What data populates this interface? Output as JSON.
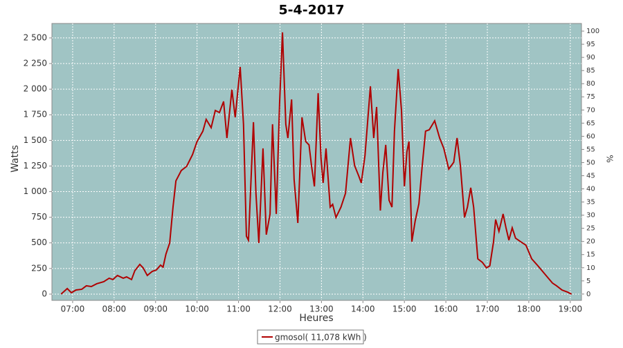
{
  "chart_data": {
    "type": "line",
    "title": "5-4-2017",
    "x_label": "Heures",
    "y_label": "Watts",
    "y2_label": "%",
    "x": [
      6.72,
      6.87,
      6.97,
      7.08,
      7.22,
      7.33,
      7.45,
      7.58,
      7.75,
      7.88,
      7.97,
      8.08,
      8.22,
      8.3,
      8.42,
      8.5,
      8.62,
      8.7,
      8.8,
      8.92,
      9.02,
      9.12,
      9.18,
      9.25,
      9.34,
      9.42,
      9.49,
      9.62,
      9.75,
      9.89,
      10.0,
      10.14,
      10.22,
      10.34,
      10.44,
      10.54,
      10.64,
      10.72,
      10.84,
      10.92,
      11.04,
      11.12,
      11.19,
      11.24,
      11.36,
      11.42,
      11.49,
      11.59,
      11.67,
      11.76,
      11.82,
      11.91,
      11.99,
      12.06,
      12.14,
      12.19,
      12.28,
      12.34,
      12.43,
      12.53,
      12.62,
      12.7,
      12.76,
      12.83,
      12.92,
      12.99,
      13.04,
      13.11,
      13.21,
      13.27,
      13.35,
      13.47,
      13.58,
      13.7,
      13.8,
      13.9,
      13.96,
      14.05,
      14.18,
      14.26,
      14.33,
      14.42,
      14.48,
      14.55,
      14.63,
      14.7,
      14.76,
      14.85,
      14.93,
      15.0,
      15.06,
      15.11,
      15.18,
      15.26,
      15.35,
      15.43,
      15.51,
      15.6,
      15.73,
      15.85,
      15.95,
      16.07,
      16.19,
      16.27,
      16.35,
      16.45,
      16.52,
      16.6,
      16.67,
      16.77,
      16.88,
      16.98,
      17.06,
      17.15,
      17.2,
      17.28,
      17.38,
      17.45,
      17.52,
      17.6,
      17.68,
      17.8,
      17.93,
      18.07,
      18.22,
      18.43,
      18.57,
      18.67,
      18.8,
      18.93,
      19.03
    ],
    "series": [
      {
        "name": "gmosol( 11,078 kWh )",
        "color": "#b00000",
        "values": [
          0,
          54,
          13,
          40,
          47,
          81,
          74,
          101,
          121,
          155,
          142,
          182,
          155,
          168,
          142,
          229,
          290,
          256,
          182,
          222,
          236,
          283,
          263,
          391,
          499,
          849,
          1105,
          1206,
          1247,
          1361,
          1489,
          1590,
          1705,
          1624,
          1792,
          1772,
          1880,
          1523,
          1995,
          1725,
          2217,
          1658,
          566,
          526,
          1678,
          984,
          499,
          1422,
          580,
          782,
          1658,
          782,
          1860,
          2554,
          1658,
          1523,
          1900,
          1119,
          694,
          1725,
          1489,
          1456,
          1253,
          1051,
          1961,
          1321,
          1085,
          1422,
          849,
          876,
          748,
          849,
          984,
          1523,
          1253,
          1152,
          1085,
          1354,
          2028,
          1523,
          1826,
          815,
          1186,
          1456,
          916,
          849,
          1590,
          2197,
          1792,
          1051,
          1388,
          1489,
          512,
          714,
          883,
          1253,
          1590,
          1604,
          1691,
          1523,
          1422,
          1220,
          1287,
          1523,
          1253,
          748,
          849,
          1038,
          849,
          344,
          310,
          256,
          276,
          512,
          728,
          613,
          782,
          647,
          526,
          647,
          546,
          512,
          478,
          344,
          276,
          175,
          108,
          81,
          40,
          20,
          0
        ]
      }
    ],
    "xlim": [
      6.5,
      19.27
    ],
    "xticks": [
      {
        "value": 7,
        "label": "07:00"
      },
      {
        "value": 8,
        "label": "08:00"
      },
      {
        "value": 9,
        "label": "09:00"
      },
      {
        "value": 10,
        "label": "10:00"
      },
      {
        "value": 11,
        "label": "11:00"
      },
      {
        "value": 12,
        "label": "12:00"
      },
      {
        "value": 13,
        "label": "13:00"
      },
      {
        "value": 14,
        "label": "14:00"
      },
      {
        "value": 15,
        "label": "15:00"
      },
      {
        "value": 16,
        "label": "16:00"
      },
      {
        "value": 17,
        "label": "17:00"
      },
      {
        "value": 18,
        "label": "18:00"
      },
      {
        "value": 19,
        "label": "19:00"
      }
    ],
    "ylim": [
      -61,
      2641
    ],
    "yticks": [
      0,
      250,
      500,
      750,
      {
        "value": 1000,
        "label": "1 000"
      },
      {
        "value": 1250,
        "label": "1 250"
      },
      {
        "value": 1500,
        "label": "1 500"
      },
      {
        "value": 1750,
        "label": "1 750"
      },
      {
        "value": 2000,
        "label": "2 000"
      },
      {
        "value": 2250,
        "label": "2 250"
      },
      {
        "value": 2500,
        "label": "2 500"
      }
    ],
    "y2lim": [
      -2.4,
      102.9
    ],
    "y2ticks": [
      0,
      5,
      10,
      15,
      20,
      25,
      30,
      35,
      40,
      45,
      50,
      55,
      60,
      65,
      70,
      75,
      80,
      85,
      90,
      95,
      100
    ],
    "grid": true,
    "background": "#a0c4c4"
  }
}
